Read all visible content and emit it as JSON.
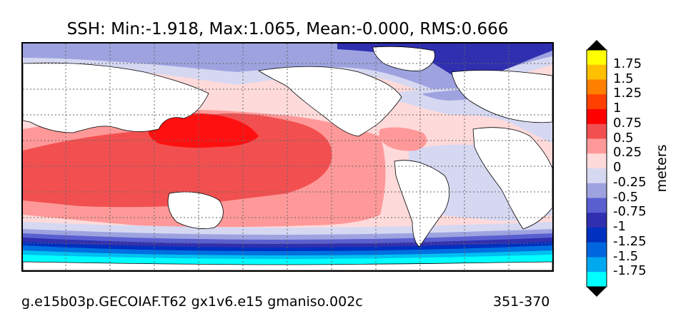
{
  "title": "SSH: Min:-1.918, Max:1.065, Mean:-0.000, RMS:0.666",
  "caption_left": "g.e15b03p.GECOIAF.T62 gx1v6.e15 gmaniso.002c",
  "caption_right": "351-370",
  "colorbar": {
    "units_label": "meters",
    "tick_labels": [
      "1.75",
      "1.5",
      "1.25",
      "1",
      "0.75",
      "0.5",
      "0.25",
      "0",
      "-0.25",
      "-0.5",
      "-0.75",
      "-1",
      "-1.25",
      "-1.5",
      "-1.75"
    ],
    "band_colors": [
      "#ffff00",
      "#ffc000",
      "#ff8000",
      "#ff4000",
      "#ff0000",
      "#f25050",
      "#ff9999",
      "#ffdada",
      "#d6d8f2",
      "#9ea3e0",
      "#5a5fd0",
      "#2f2fb0",
      "#0030c0",
      "#0066e0",
      "#00a8f0",
      "#00ffff"
    ]
  },
  "map": {
    "land_color": "#ffffff",
    "grid_style": "dotted",
    "colors": {
      "deep_neg": "#00ffff",
      "neg_1_5": "#00c0f0",
      "neg_1_25": "#0070e0",
      "neg_1": "#0030c0",
      "neg_0_75": "#2f2fb0",
      "neg_0_5": "#5a5fd0",
      "neg_0_25": "#9ea3e0",
      "zero": "#d6d8f2",
      "pos_0_25": "#ffdada",
      "pos_0_5": "#ff9999",
      "pos_0_75": "#f25050",
      "pos_1": "#ff1010"
    }
  }
}
